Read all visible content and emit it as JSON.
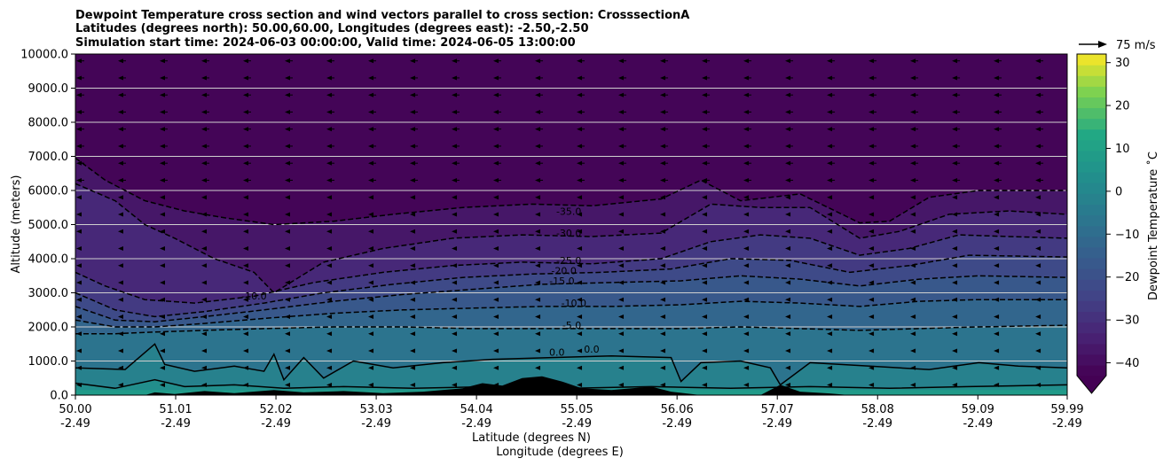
{
  "chart_data": {
    "type": "heatmap",
    "title_lines": [
      "Dewpoint Temperature cross section and wind vectors parallel to cross section: CrosssectionA",
      "Latitudes (degrees north): 50.00,60.00, Longitudes (degrees east): -2.50,-2.50",
      "Simulation start time: 2024-06-03 00:00:00, Valid time: 2024-06-05 13:00:00"
    ],
    "ylabel": "Altitude (meters)",
    "xlabel_lines": [
      "Latitude (degrees N)",
      "Longitude (degrees E)"
    ],
    "xlim": [
      50.0,
      59.99
    ],
    "ylim": [
      0,
      10000
    ],
    "x_ticks": [
      {
        "lat": "50.00",
        "lon": "-2.49",
        "value": 50.0
      },
      {
        "lat": "51.01",
        "lon": "-2.49",
        "value": 51.01
      },
      {
        "lat": "52.02",
        "lon": "-2.49",
        "value": 52.02
      },
      {
        "lat": "53.03",
        "lon": "-2.49",
        "value": 53.03
      },
      {
        "lat": "54.04",
        "lon": "-2.49",
        "value": 54.04
      },
      {
        "lat": "55.05",
        "lon": "-2.49",
        "value": 55.05
      },
      {
        "lat": "56.06",
        "lon": "-2.49",
        "value": 56.06
      },
      {
        "lat": "57.07",
        "lon": "-2.49",
        "value": 57.07
      },
      {
        "lat": "58.08",
        "lon": "-2.49",
        "value": 58.08
      },
      {
        "lat": "59.09",
        "lon": "-2.49",
        "value": 59.09
      },
      {
        "lat": "59.99",
        "lon": "-2.49",
        "value": 59.99
      }
    ],
    "y_ticks": [
      {
        "label": "0.0",
        "value": 0
      },
      {
        "label": "1000.0",
        "value": 1000
      },
      {
        "label": "2000.0",
        "value": 2000
      },
      {
        "label": "3000.0",
        "value": 3000
      },
      {
        "label": "4000.0",
        "value": 4000
      },
      {
        "label": "5000.0",
        "value": 5000
      },
      {
        "label": "6000.0",
        "value": 6000
      },
      {
        "label": "7000.0",
        "value": 7000
      },
      {
        "label": "8000.0",
        "value": 8000
      },
      {
        "label": "9000.0",
        "value": 9000
      },
      {
        "label": "10000.0",
        "value": 10000
      }
    ],
    "grid": "horizontal",
    "colorbar": {
      "label": "Dewpoint Temperature $^\\circ$C",
      "label_display": "Dewpoint Temperature ˚C",
      "range": [
        -43,
        32
      ],
      "extend": "min",
      "ticks": [
        {
          "label": "30",
          "value": 30
        },
        {
          "label": "20",
          "value": 20
        },
        {
          "label": "10",
          "value": 10
        },
        {
          "label": "0",
          "value": 0
        },
        {
          "label": "−10",
          "value": -10
        },
        {
          "label": "−20",
          "value": -20
        },
        {
          "label": "−30",
          "value": -30
        },
        {
          "label": "−40",
          "value": -40
        }
      ],
      "colormap": "viridis"
    },
    "quiver_key": {
      "label": "75 m/s",
      "value": 75
    },
    "contour_levels": [
      -35,
      -30,
      -25,
      -20,
      -15,
      -10,
      -5,
      0
    ],
    "contour_labels": [
      {
        "text": "-35.0",
        "lat": 54.97,
        "alt": 5280
      },
      {
        "text": "-30.0",
        "lat": 54.97,
        "alt": 4650
      },
      {
        "text": "-25.0",
        "lat": 54.97,
        "alt": 3850
      },
      {
        "text": "-20.0",
        "lat": 54.92,
        "alt": 3550
      },
      {
        "text": "-15.0",
        "lat": 54.9,
        "alt": 3250
      },
      {
        "text": "-10.0",
        "lat": 55.02,
        "alt": 2600
      },
      {
        "text": "-5.0",
        "lat": 55.0,
        "alt": 1950
      },
      {
        "text": "0.0",
        "lat": 54.85,
        "alt": 1150
      },
      {
        "text": "0.0",
        "lat": 55.2,
        "alt": 1250
      },
      {
        "text": "-10.0",
        "lat": 51.8,
        "alt": 2800
      }
    ],
    "contour_lines": [
      {
        "level": -35,
        "style": "dashed",
        "points": [
          [
            50.0,
            6950
          ],
          [
            50.3,
            6300
          ],
          [
            50.7,
            5700
          ],
          [
            51.1,
            5400
          ],
          [
            51.5,
            5200
          ],
          [
            52.0,
            5000
          ],
          [
            52.6,
            5100
          ],
          [
            53.2,
            5300
          ],
          [
            53.9,
            5500
          ],
          [
            54.6,
            5600
          ],
          [
            55.2,
            5550
          ],
          [
            55.9,
            5750
          ],
          [
            56.3,
            6300
          ],
          [
            56.7,
            5700
          ],
          [
            57.3,
            5900
          ],
          [
            57.9,
            5050
          ],
          [
            58.2,
            5100
          ],
          [
            58.6,
            5800
          ],
          [
            59.1,
            6000
          ],
          [
            59.99,
            6000
          ]
        ]
      },
      {
        "level": -30,
        "style": "dashed",
        "points": [
          [
            50.0,
            6200
          ],
          [
            50.4,
            5700
          ],
          [
            50.7,
            5000
          ],
          [
            51.0,
            4600
          ],
          [
            51.4,
            4000
          ],
          [
            51.8,
            3600
          ],
          [
            52.0,
            3000
          ],
          [
            52.5,
            3900
          ],
          [
            53.1,
            4300
          ],
          [
            53.8,
            4600
          ],
          [
            54.5,
            4700
          ],
          [
            55.2,
            4650
          ],
          [
            55.9,
            4750
          ],
          [
            56.4,
            5600
          ],
          [
            56.9,
            5500
          ],
          [
            57.4,
            5500
          ],
          [
            57.9,
            4600
          ],
          [
            58.3,
            4800
          ],
          [
            58.8,
            5300
          ],
          [
            59.4,
            5400
          ],
          [
            59.99,
            5300
          ]
        ]
      },
      {
        "level": -25,
        "style": "dashed",
        "points": [
          [
            50.0,
            3600
          ],
          [
            50.3,
            3200
          ],
          [
            50.7,
            2800
          ],
          [
            51.2,
            2700
          ],
          [
            51.8,
            2900
          ],
          [
            52.4,
            3300
          ],
          [
            53.1,
            3600
          ],
          [
            53.8,
            3800
          ],
          [
            54.5,
            3900
          ],
          [
            55.2,
            3850
          ],
          [
            55.9,
            4000
          ],
          [
            56.4,
            4500
          ],
          [
            56.9,
            4700
          ],
          [
            57.4,
            4600
          ],
          [
            57.9,
            4100
          ],
          [
            58.4,
            4300
          ],
          [
            58.9,
            4700
          ],
          [
            59.4,
            4650
          ],
          [
            59.99,
            4600
          ]
        ]
      },
      {
        "level": -20,
        "style": "dashed",
        "points": [
          [
            50.0,
            3000
          ],
          [
            50.4,
            2500
          ],
          [
            50.8,
            2300
          ],
          [
            51.3,
            2450
          ],
          [
            51.9,
            2700
          ],
          [
            52.5,
            3000
          ],
          [
            53.2,
            3250
          ],
          [
            53.9,
            3450
          ],
          [
            54.6,
            3550
          ],
          [
            55.3,
            3600
          ],
          [
            56.0,
            3700
          ],
          [
            56.6,
            4000
          ],
          [
            57.2,
            3950
          ],
          [
            57.8,
            3600
          ],
          [
            58.4,
            3800
          ],
          [
            59.0,
            4100
          ],
          [
            59.99,
            4050
          ]
        ]
      },
      {
        "level": -15,
        "style": "dashed",
        "points": [
          [
            50.0,
            2600
          ],
          [
            50.4,
            2200
          ],
          [
            50.8,
            2150
          ],
          [
            51.3,
            2300
          ],
          [
            51.9,
            2500
          ],
          [
            52.6,
            2750
          ],
          [
            53.3,
            2950
          ],
          [
            54.0,
            3100
          ],
          [
            54.7,
            3250
          ],
          [
            55.4,
            3300
          ],
          [
            56.1,
            3350
          ],
          [
            56.7,
            3500
          ],
          [
            57.3,
            3400
          ],
          [
            57.9,
            3200
          ],
          [
            58.5,
            3400
          ],
          [
            59.1,
            3500
          ],
          [
            59.99,
            3450
          ]
        ]
      },
      {
        "level": -10,
        "style": "dashed",
        "points": [
          [
            50.0,
            2200
          ],
          [
            50.4,
            2000
          ],
          [
            50.8,
            2000
          ],
          [
            51.3,
            2100
          ],
          [
            51.9,
            2250
          ],
          [
            52.6,
            2400
          ],
          [
            53.3,
            2500
          ],
          [
            54.0,
            2550
          ],
          [
            54.7,
            2600
          ],
          [
            55.4,
            2600
          ],
          [
            56.1,
            2650
          ],
          [
            56.7,
            2750
          ],
          [
            57.3,
            2700
          ],
          [
            57.9,
            2600
          ],
          [
            58.5,
            2750
          ],
          [
            59.1,
            2800
          ],
          [
            59.99,
            2800
          ]
        ]
      },
      {
        "level": -5,
        "style": "dashed",
        "points": [
          [
            50.0,
            1800
          ],
          [
            50.4,
            1800
          ],
          [
            50.8,
            1850
          ],
          [
            51.3,
            1900
          ],
          [
            51.9,
            1950
          ],
          [
            52.6,
            2000
          ],
          [
            53.3,
            2000
          ],
          [
            54.0,
            1950
          ],
          [
            54.7,
            1950
          ],
          [
            55.4,
            1950
          ],
          [
            56.1,
            1950
          ],
          [
            56.7,
            2000
          ],
          [
            57.3,
            1950
          ],
          [
            57.9,
            1900
          ],
          [
            58.5,
            1950
          ],
          [
            59.1,
            2000
          ],
          [
            59.99,
            2050
          ]
        ]
      },
      {
        "level": 0,
        "style": "solid",
        "points": [
          [
            50.0,
            800
          ],
          [
            50.5,
            750
          ],
          [
            50.8,
            1500
          ],
          [
            50.9,
            900
          ],
          [
            51.2,
            700
          ],
          [
            51.6,
            850
          ],
          [
            51.9,
            700
          ],
          [
            52.0,
            1200
          ],
          [
            52.1,
            450
          ],
          [
            52.3,
            1100
          ],
          [
            52.5,
            500
          ],
          [
            52.8,
            1000
          ],
          [
            53.2,
            800
          ],
          [
            53.7,
            950
          ],
          [
            54.2,
            1050
          ],
          [
            54.8,
            1100
          ],
          [
            55.4,
            1150
          ],
          [
            56.0,
            1100
          ],
          [
            56.1,
            400
          ],
          [
            56.3,
            950
          ],
          [
            56.7,
            1000
          ],
          [
            57.0,
            800
          ],
          [
            57.1,
            300
          ],
          [
            57.4,
            950
          ],
          [
            58.0,
            850
          ],
          [
            58.6,
            750
          ],
          [
            59.1,
            950
          ],
          [
            59.5,
            850
          ],
          [
            59.99,
            800
          ]
        ]
      },
      {
        "level": 5,
        "style": "solid",
        "points": [
          [
            50.0,
            350
          ],
          [
            50.4,
            200
          ],
          [
            50.8,
            450
          ],
          [
            51.1,
            250
          ],
          [
            51.6,
            300
          ],
          [
            52.1,
            200
          ],
          [
            52.7,
            250
          ],
          [
            53.4,
            200
          ],
          [
            54.2,
            250
          ],
          [
            55.0,
            200
          ],
          [
            55.8,
            250
          ],
          [
            56.6,
            200
          ],
          [
            57.4,
            250
          ],
          [
            58.2,
            200
          ],
          [
            59.0,
            250
          ],
          [
            59.99,
            300
          ]
        ]
      }
    ],
    "terrain_note_free": true,
    "terrain": [
      [
        50.0,
        0
      ],
      [
        50.7,
        0
      ],
      [
        50.8,
        80
      ],
      [
        51.0,
        30
      ],
      [
        51.3,
        120
      ],
      [
        51.6,
        60
      ],
      [
        52.0,
        150
      ],
      [
        52.3,
        80
      ],
      [
        52.7,
        120
      ],
      [
        53.1,
        60
      ],
      [
        53.5,
        100
      ],
      [
        53.9,
        200
      ],
      [
        54.1,
        350
      ],
      [
        54.3,
        280
      ],
      [
        54.5,
        500
      ],
      [
        54.7,
        550
      ],
      [
        54.9,
        400
      ],
      [
        55.1,
        200
      ],
      [
        55.4,
        150
      ],
      [
        55.8,
        250
      ],
      [
        56.0,
        100
      ],
      [
        56.3,
        0
      ],
      [
        56.9,
        0
      ],
      [
        57.1,
        300
      ],
      [
        57.3,
        100
      ],
      [
        57.6,
        50
      ],
      [
        57.8,
        0
      ],
      [
        59.99,
        0
      ]
    ],
    "wind": {
      "direction": "westward",
      "speed_ms_upper": 25,
      "speed_ms_lower": 8
    }
  }
}
